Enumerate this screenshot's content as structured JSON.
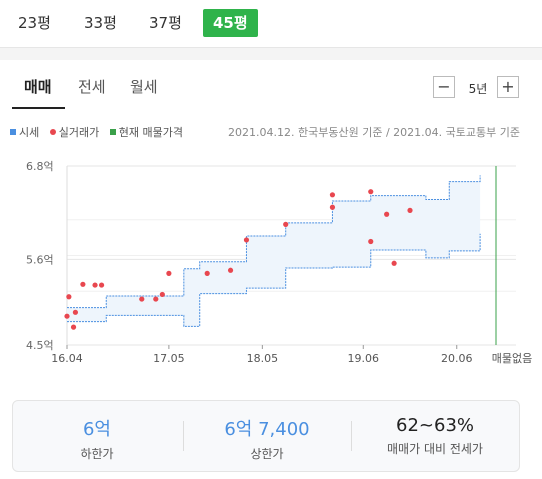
{
  "size_tabs": [
    "23평",
    "33평",
    "37평",
    "45평"
  ],
  "deal_tabs": [
    "매매",
    "전세",
    "월세"
  ],
  "period": {
    "value": "5년",
    "minus": "−",
    "plus": "+"
  },
  "legend": {
    "market": "시세",
    "actual": "실거래가",
    "current": "현재 매물가격"
  },
  "source_note": "2021.04.12. 한국부동산원 기준 / 2021.04. 국토교통부 기준",
  "colors": {
    "active_tab": "#2fb34b",
    "band_line": "#4a8fe0",
    "band_fill": "#eef5fc",
    "dots": "#e8474f",
    "current_line": "#3aa04a"
  },
  "chart_data": {
    "type": "scatter",
    "x_ticks": [
      "16.04",
      "17.05",
      "18.05",
      "19.06",
      "20.06"
    ],
    "y_ticks": [
      "6.8억",
      "5.6억",
      "4.5억"
    ],
    "y_range": [
      4.5,
      6.8
    ],
    "end_label": "매물없음",
    "band": {
      "upper": [
        [
          16.33,
          4.98
        ],
        [
          16.75,
          5.13
        ],
        [
          17.58,
          5.48
        ],
        [
          17.75,
          5.57
        ],
        [
          18.25,
          5.9
        ],
        [
          18.67,
          6.07
        ],
        [
          19.17,
          6.35
        ],
        [
          19.58,
          6.42
        ],
        [
          20.17,
          6.37
        ],
        [
          20.42,
          6.6
        ],
        [
          20.75,
          6.68
        ]
      ],
      "lower": [
        [
          16.33,
          4.8
        ],
        [
          16.75,
          4.88
        ],
        [
          17.58,
          4.74
        ],
        [
          17.75,
          5.16
        ],
        [
          18.25,
          5.23
        ],
        [
          18.67,
          5.49
        ],
        [
          19.17,
          5.5
        ],
        [
          19.58,
          5.72
        ],
        [
          20.17,
          5.62
        ],
        [
          20.42,
          5.71
        ],
        [
          20.75,
          5.93
        ]
      ]
    },
    "actual_points": [
      [
        16.33,
        4.87
      ],
      [
        16.35,
        5.12
      ],
      [
        16.4,
        4.73
      ],
      [
        16.42,
        4.92
      ],
      [
        16.5,
        5.28
      ],
      [
        16.63,
        5.27
      ],
      [
        16.7,
        5.27
      ],
      [
        17.13,
        5.09
      ],
      [
        17.28,
        5.09
      ],
      [
        17.35,
        5.15
      ],
      [
        17.42,
        5.42
      ],
      [
        17.83,
        5.42
      ],
      [
        18.08,
        5.46
      ],
      [
        18.25,
        5.85
      ],
      [
        18.67,
        6.05
      ],
      [
        19.17,
        6.43
      ],
      [
        19.17,
        6.27
      ],
      [
        19.58,
        6.47
      ],
      [
        19.58,
        5.83
      ],
      [
        19.75,
        6.18
      ],
      [
        19.83,
        5.55
      ],
      [
        20.0,
        6.23
      ]
    ]
  },
  "summary": [
    {
      "value": "6억",
      "label": "하한가"
    },
    {
      "value": "6억 7,400",
      "label": "상한가"
    },
    {
      "value": "62~63%",
      "label": "매매가 대비 전세가"
    }
  ]
}
